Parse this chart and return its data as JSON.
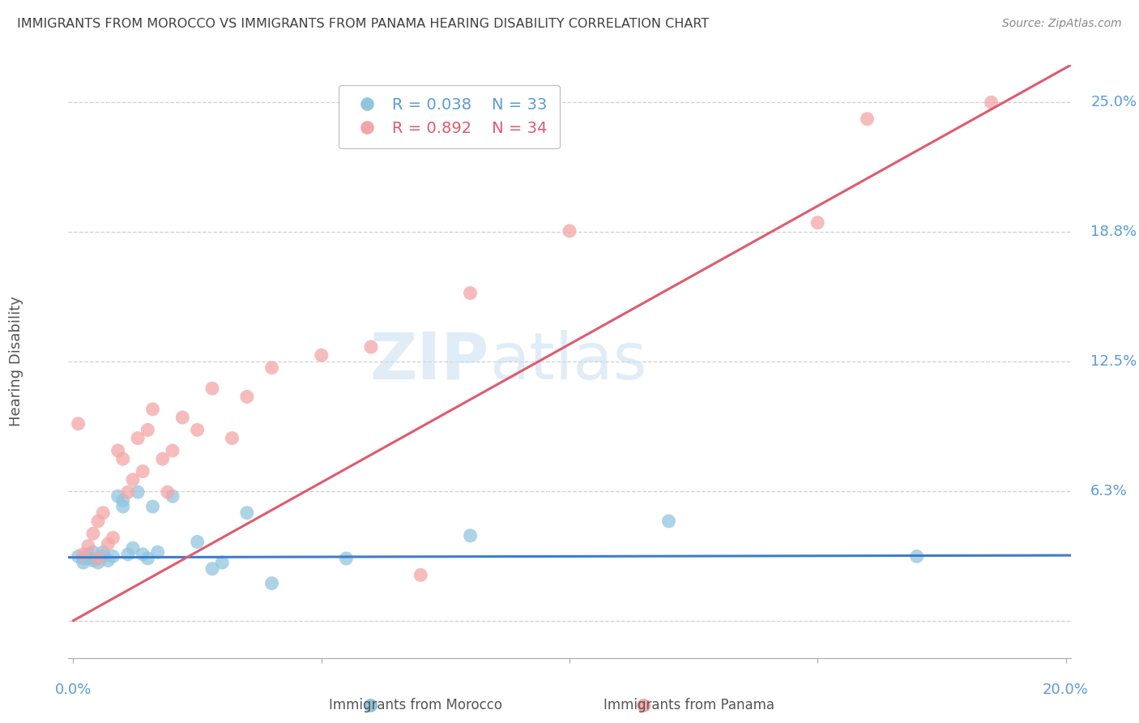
{
  "title": "IMMIGRANTS FROM MOROCCO VS IMMIGRANTS FROM PANAMA HEARING DISABILITY CORRELATION CHART",
  "source": "Source: ZipAtlas.com",
  "ylabel": "Hearing Disability",
  "y_ticks_right": [
    0.0,
    0.0625,
    0.125,
    0.1875,
    0.25
  ],
  "y_tick_labels_right": [
    "",
    "6.3%",
    "12.5%",
    "18.8%",
    "25.0%"
  ],
  "xlim": [
    -0.001,
    0.201
  ],
  "ylim": [
    -0.018,
    0.268
  ],
  "morocco_color": "#92c5de",
  "panama_color": "#f4a6a6",
  "morocco_line_color": "#3d7ec8",
  "panama_line_color": "#e05a6e",
  "legend_r_morocco": "R = 0.038",
  "legend_n_morocco": "N = 33",
  "legend_r_panama": "R = 0.892",
  "legend_n_panama": "N = 34",
  "legend_label_morocco": "Immigrants from Morocco",
  "legend_label_panama": "Immigrants from Panama",
  "watermark_zip": "ZIP",
  "watermark_atlas": "atlas",
  "background_color": "#ffffff",
  "grid_color": "#d0d0d0",
  "axis_label_color": "#5b9bd5",
  "title_color": "#404040",
  "morocco_scatter": [
    [
      0.001,
      0.031
    ],
    [
      0.002,
      0.03
    ],
    [
      0.002,
      0.028
    ],
    [
      0.003,
      0.032
    ],
    [
      0.003,
      0.03
    ],
    [
      0.004,
      0.029
    ],
    [
      0.004,
      0.033
    ],
    [
      0.005,
      0.03
    ],
    [
      0.005,
      0.028
    ],
    [
      0.006,
      0.031
    ],
    [
      0.006,
      0.033
    ],
    [
      0.007,
      0.029
    ],
    [
      0.008,
      0.031
    ],
    [
      0.009,
      0.06
    ],
    [
      0.01,
      0.055
    ],
    [
      0.01,
      0.058
    ],
    [
      0.011,
      0.032
    ],
    [
      0.012,
      0.035
    ],
    [
      0.013,
      0.062
    ],
    [
      0.014,
      0.032
    ],
    [
      0.015,
      0.03
    ],
    [
      0.016,
      0.055
    ],
    [
      0.017,
      0.033
    ],
    [
      0.02,
      0.06
    ],
    [
      0.025,
      0.038
    ],
    [
      0.028,
      0.025
    ],
    [
      0.03,
      0.028
    ],
    [
      0.035,
      0.052
    ],
    [
      0.04,
      0.018
    ],
    [
      0.055,
      0.03
    ],
    [
      0.08,
      0.041
    ],
    [
      0.12,
      0.048
    ],
    [
      0.17,
      0.031
    ]
  ],
  "panama_scatter": [
    [
      0.001,
      0.095
    ],
    [
      0.002,
      0.032
    ],
    [
      0.003,
      0.036
    ],
    [
      0.004,
      0.042
    ],
    [
      0.005,
      0.03
    ],
    [
      0.005,
      0.048
    ],
    [
      0.006,
      0.052
    ],
    [
      0.007,
      0.037
    ],
    [
      0.008,
      0.04
    ],
    [
      0.009,
      0.082
    ],
    [
      0.01,
      0.078
    ],
    [
      0.011,
      0.062
    ],
    [
      0.012,
      0.068
    ],
    [
      0.013,
      0.088
    ],
    [
      0.014,
      0.072
    ],
    [
      0.015,
      0.092
    ],
    [
      0.016,
      0.102
    ],
    [
      0.018,
      0.078
    ],
    [
      0.019,
      0.062
    ],
    [
      0.02,
      0.082
    ],
    [
      0.022,
      0.098
    ],
    [
      0.025,
      0.092
    ],
    [
      0.028,
      0.112
    ],
    [
      0.032,
      0.088
    ],
    [
      0.035,
      0.108
    ],
    [
      0.04,
      0.122
    ],
    [
      0.05,
      0.128
    ],
    [
      0.06,
      0.132
    ],
    [
      0.07,
      0.022
    ],
    [
      0.08,
      0.158
    ],
    [
      0.1,
      0.188
    ],
    [
      0.15,
      0.192
    ],
    [
      0.16,
      0.242
    ],
    [
      0.185,
      0.25
    ]
  ],
  "morocco_line_x": [
    -0.001,
    0.201
  ],
  "morocco_line_y": [
    0.0305,
    0.0315
  ],
  "panama_line_x": [
    0.0,
    0.201
  ],
  "panama_line_y": [
    0.0,
    0.268
  ]
}
